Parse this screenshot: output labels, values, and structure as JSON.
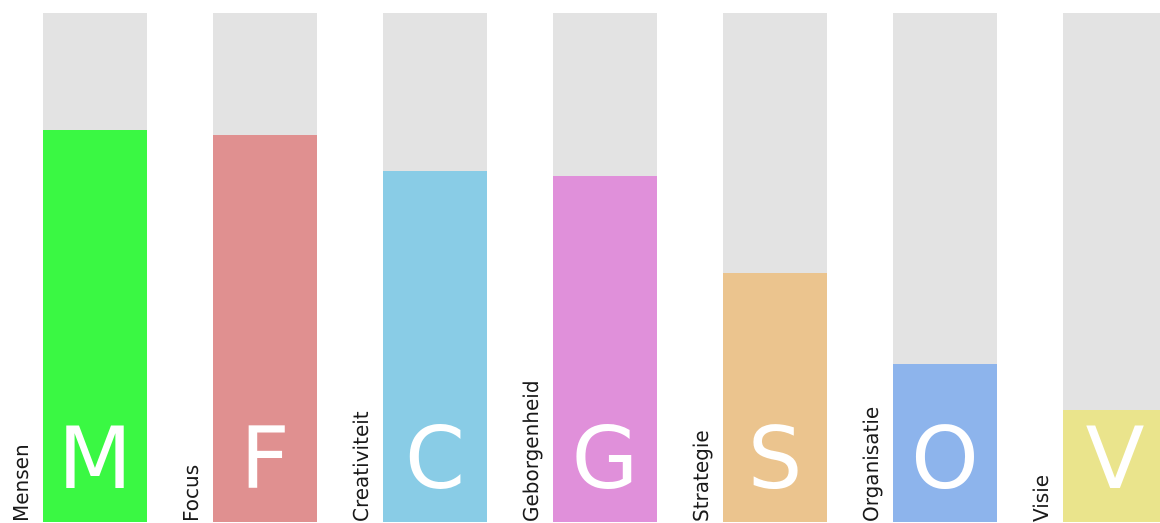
{
  "chart_data": {
    "type": "bar",
    "orientation": "vertical",
    "categories": [
      "Mensen",
      "Focus",
      "Creativiteit",
      "Geborgenheid",
      "Strategie",
      "Organisatie",
      "Visie"
    ],
    "letters": [
      "M",
      "F",
      "C",
      "G",
      "S",
      "O",
      "V"
    ],
    "values": [
      77,
      76,
      69,
      68,
      49,
      31,
      22
    ],
    "ylim": [
      0,
      100
    ],
    "colors": [
      "#3af843",
      "#e09090",
      "#89cce6",
      "#e090da",
      "#ebc48e",
      "#8db4ec",
      "#eae48c"
    ],
    "track_color": "#e3e3e3",
    "title": "",
    "xlabel": "",
    "ylabel": "",
    "grid": false,
    "legend": "none"
  }
}
